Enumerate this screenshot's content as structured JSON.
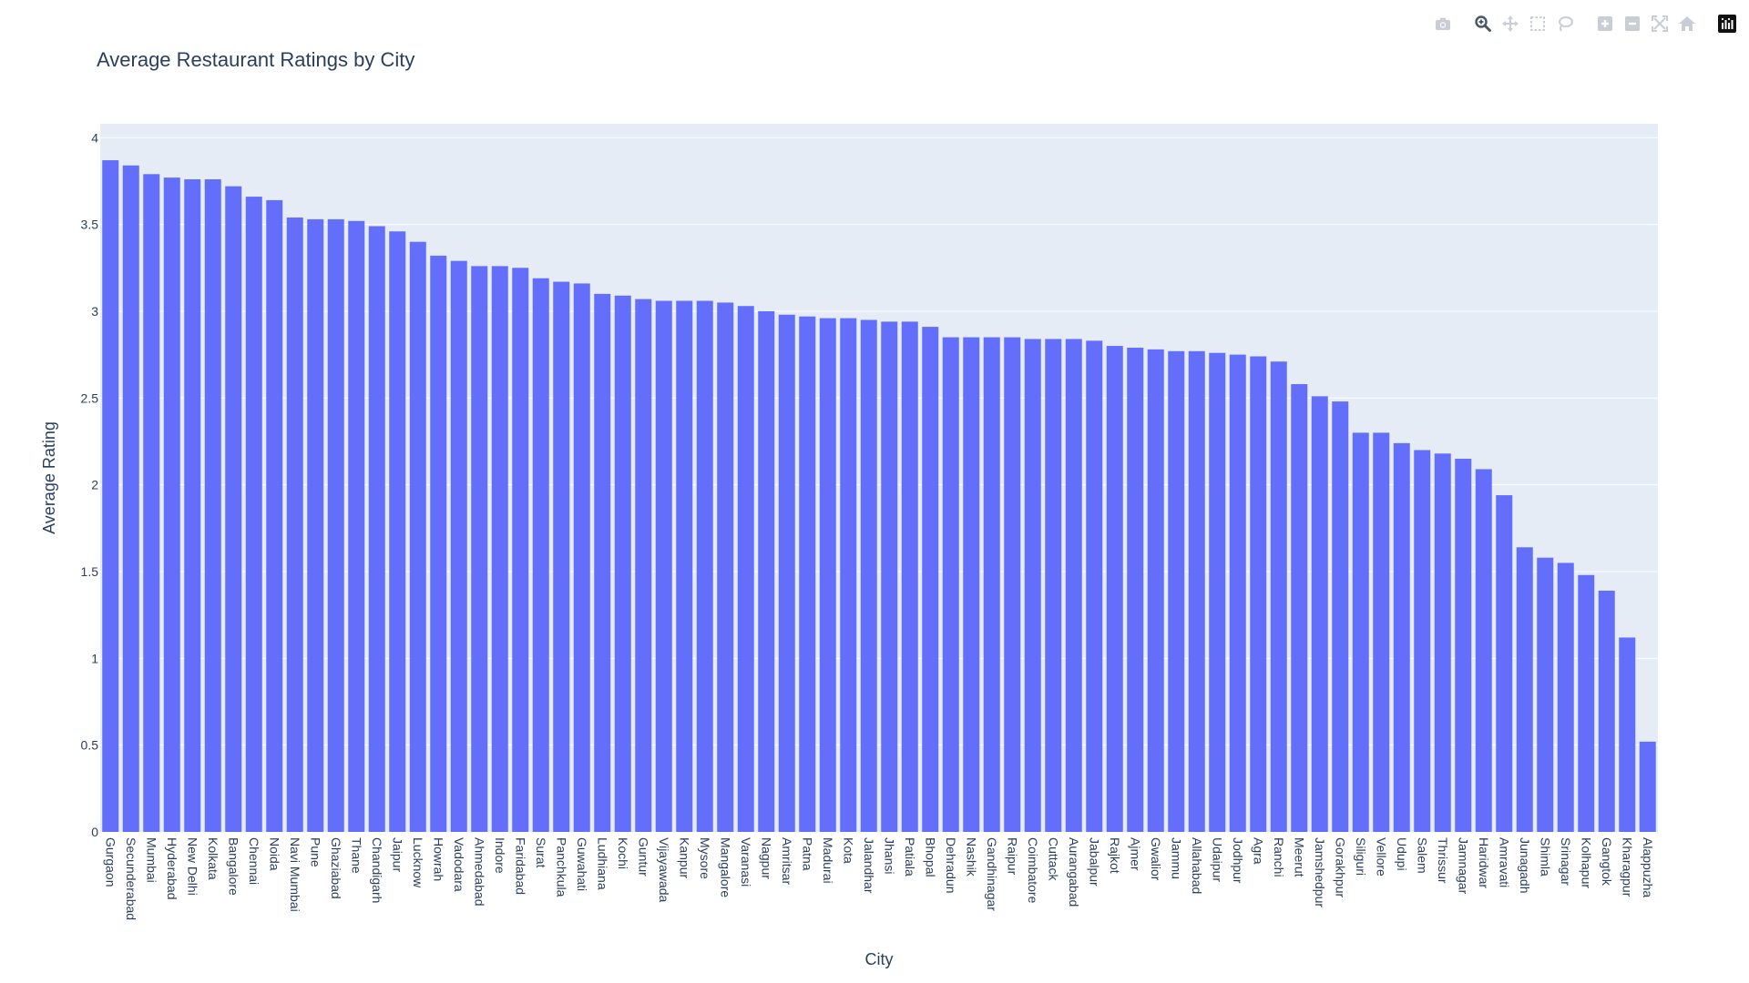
{
  "chart_data": {
    "type": "bar",
    "title": "Average Restaurant Ratings by City",
    "xlabel": "City",
    "ylabel": "Average Rating",
    "ylim": [
      0,
      4.08
    ],
    "yticks": [
      "0",
      "0.5",
      "1",
      "1.5",
      "2",
      "2.5",
      "3",
      "3.5",
      "4"
    ],
    "grid": true,
    "bar_color": "#636efa",
    "plot_bg": "#e5ecf6",
    "categories": [
      "Gurgaon",
      "Secunderabad",
      "Mumbai",
      "Hyderabad",
      "New Delhi",
      "Kolkata",
      "Bangalore",
      "Chennai",
      "Noida",
      "Navi Mumbai",
      "Pune",
      "Ghaziabad",
      "Thane",
      "Chandigarh",
      "Jaipur",
      "Lucknow",
      "Howrah",
      "Vadodara",
      "Ahmedabad",
      "Indore",
      "Faridabad",
      "Surat",
      "Panchkula",
      "Guwahati",
      "Ludhiana",
      "Kochi",
      "Guntur",
      "Vijayawada",
      "Kanpur",
      "Mysore",
      "Mangalore",
      "Varanasi",
      "Nagpur",
      "Amritsar",
      "Patna",
      "Madurai",
      "Kota",
      "Jalandhar",
      "Jhansi",
      "Patiala",
      "Bhopal",
      "Dehradun",
      "Nashik",
      "Gandhinagar",
      "Raipur",
      "Coimbatore",
      "Cuttack",
      "Aurangabad",
      "Jabalpur",
      "Rajkot",
      "Ajmer",
      "Gwalior",
      "Jammu",
      "Allahabad",
      "Udaipur",
      "Jodhpur",
      "Agra",
      "Ranchi",
      "Meerut",
      "Jamshedpur",
      "Gorakhpur",
      "Siliguri",
      "Vellore",
      "Udupi",
      "Salem",
      "Thrissur",
      "Jamnagar",
      "Haridwar",
      "Amravati",
      "Junagadh",
      "Shimla",
      "Srinagar",
      "Kolhapur",
      "Gangtok",
      "Kharagpur",
      "Alappuzha"
    ],
    "values": [
      3.87,
      3.84,
      3.79,
      3.77,
      3.76,
      3.76,
      3.72,
      3.66,
      3.64,
      3.54,
      3.53,
      3.53,
      3.52,
      3.49,
      3.46,
      3.4,
      3.32,
      3.29,
      3.26,
      3.26,
      3.25,
      3.19,
      3.17,
      3.16,
      3.1,
      3.09,
      3.07,
      3.06,
      3.06,
      3.06,
      3.05,
      3.03,
      3.0,
      2.98,
      2.97,
      2.96,
      2.96,
      2.95,
      2.94,
      2.94,
      2.91,
      2.85,
      2.85,
      2.85,
      2.85,
      2.84,
      2.84,
      2.84,
      2.83,
      2.8,
      2.79,
      2.78,
      2.77,
      2.77,
      2.76,
      2.75,
      2.74,
      2.71,
      2.58,
      2.51,
      2.48,
      2.3,
      2.3,
      2.24,
      2.2,
      2.18,
      2.15,
      2.09,
      1.94,
      1.64,
      1.58,
      1.55,
      1.48,
      1.39,
      1.12,
      0.52
    ]
  },
  "modebar": {
    "buttons": [
      "camera-icon",
      "zoom-icon",
      "pan-icon",
      "box-select-icon",
      "lasso-icon",
      "zoom-in-icon",
      "zoom-out-icon",
      "autoscale-icon",
      "reset-axes-icon",
      "plotly-logo-icon"
    ]
  }
}
